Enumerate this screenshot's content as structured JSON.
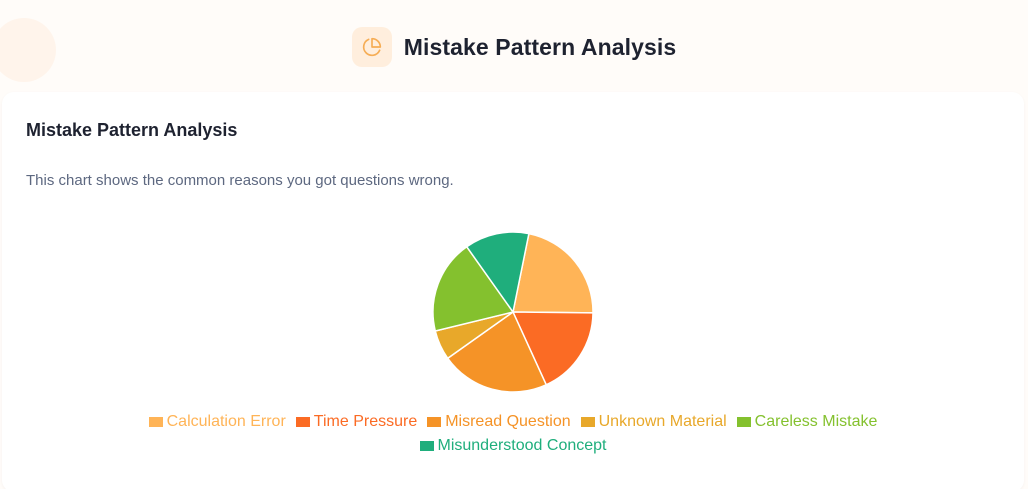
{
  "header": {
    "title": "Mistake Pattern Analysis",
    "icon": "pie-chart-icon",
    "icon_color": "#f6ad55"
  },
  "card": {
    "title": "Mistake Pattern Analysis",
    "description": "This chart shows the common reasons you got questions wrong."
  },
  "chart_data": {
    "type": "pie",
    "title": "",
    "legend_position": "bottom",
    "slices": [
      {
        "label": "Calculation Error",
        "value": 22,
        "color": "#ffb457"
      },
      {
        "label": "Time Pressure",
        "value": 18,
        "color": "#fb6b24"
      },
      {
        "label": "Misread Question",
        "value": 22,
        "color": "#f59327"
      },
      {
        "label": "Unknown Material",
        "value": 6,
        "color": "#e8a82a"
      },
      {
        "label": "Careless Mistake",
        "value": 19,
        "color": "#84c12e"
      },
      {
        "label": "Misunderstood Concept",
        "value": 13,
        "color": "#1fae7c"
      }
    ]
  }
}
